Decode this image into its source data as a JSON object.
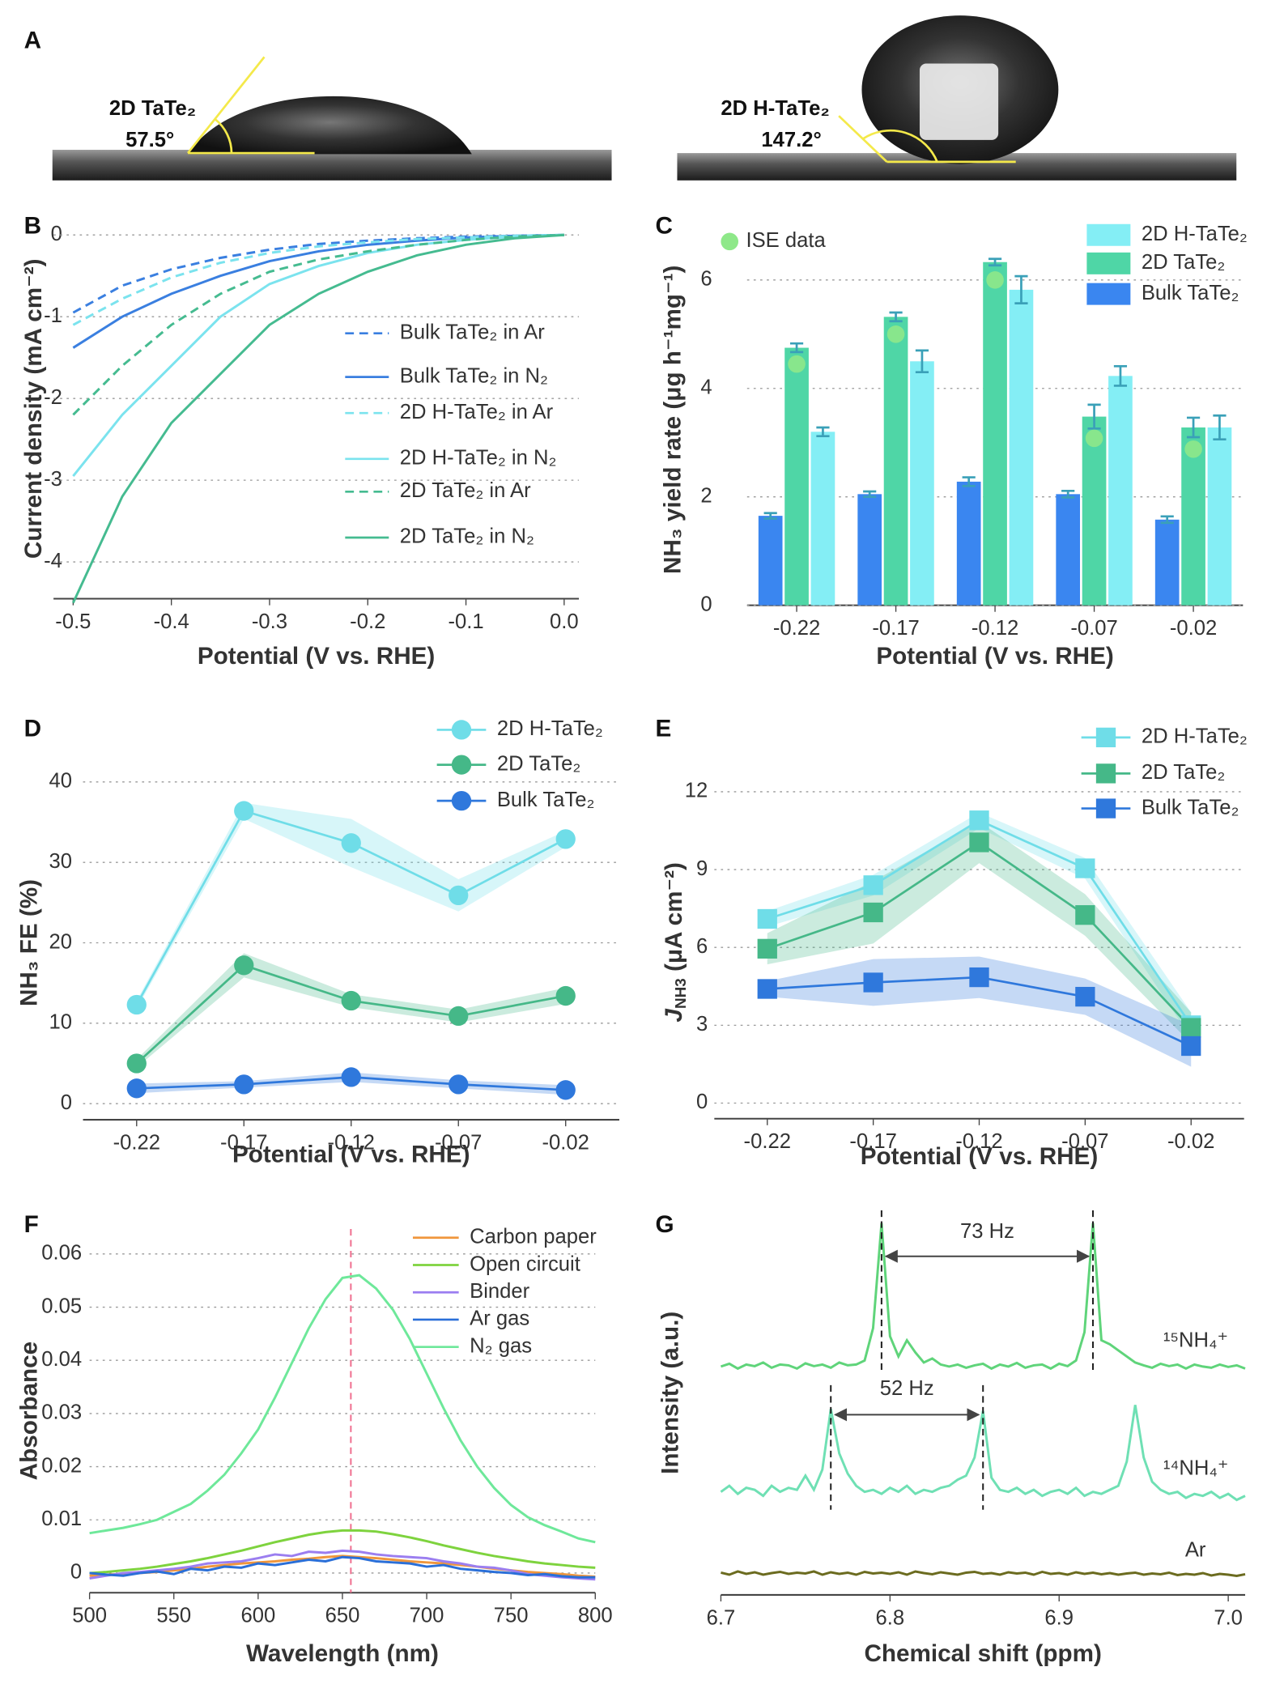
{
  "panel_labels": [
    "A",
    "B",
    "C",
    "D",
    "E",
    "F",
    "G"
  ],
  "panel_a": {
    "left": {
      "label": "2D TaTe₂",
      "angle": "57.5°"
    },
    "right": {
      "label": "2D H-TaTe₂",
      "angle": "147.2°"
    }
  },
  "chart_data": [
    {
      "type": "line",
      "xlabel": "Potential (V vs. RHE)",
      "ylabel": "Current density (mA cm⁻²)",
      "x": [
        -0.5,
        -0.45,
        -0.4,
        -0.35,
        -0.3,
        -0.25,
        -0.2,
        -0.15,
        -0.1,
        -0.05,
        0
      ],
      "xlim": [
        -0.52,
        0.015
      ],
      "ylim": [
        -4.45,
        0.2
      ],
      "xticks": [
        -0.5,
        -0.4,
        -0.3,
        -0.2,
        -0.1,
        {
          "value": 0,
          "label": "0.0"
        }
      ],
      "yticks": [
        0,
        -1,
        -2,
        -3,
        -4
      ],
      "grid": true,
      "legend": "right",
      "series": [
        {
          "name": "Bulk TaTe₂ in Ar",
          "color": "#3a7fe0",
          "dash": true,
          "values": [
            -0.95,
            -0.62,
            -0.42,
            -0.28,
            -0.18,
            -0.11,
            -0.07,
            -0.04,
            -0.02,
            -0.01,
            0
          ]
        },
        {
          "name": "Bulk TaTe₂ in N₂",
          "color": "#3a7fe0",
          "dash": false,
          "values": [
            -1.38,
            -1.0,
            -0.72,
            -0.5,
            -0.32,
            -0.2,
            -0.12,
            -0.07,
            -0.03,
            -0.01,
            0
          ]
        },
        {
          "name": "2D H-TaTe₂ in Ar",
          "color": "#7be3ee",
          "dash": true,
          "values": [
            -1.1,
            -0.78,
            -0.52,
            -0.34,
            -0.22,
            -0.14,
            -0.09,
            -0.05,
            -0.03,
            -0.01,
            0
          ]
        },
        {
          "name": "2D H-TaTe₂ in N₂",
          "color": "#7be3ee",
          "dash": false,
          "values": [
            -2.95,
            -2.2,
            -1.6,
            -1.0,
            -0.6,
            -0.38,
            -0.22,
            -0.12,
            -0.06,
            -0.02,
            0
          ]
        },
        {
          "name": "2D TaTe₂ in Ar",
          "color": "#45bb90",
          "dash": true,
          "values": [
            -2.2,
            -1.6,
            -1.1,
            -0.72,
            -0.45,
            -0.3,
            -0.2,
            -0.12,
            -0.06,
            -0.02,
            0
          ]
        },
        {
          "name": "2D TaTe₂ in N₂",
          "color": "#45bb90",
          "dash": false,
          "values": [
            -4.5,
            -3.2,
            -2.3,
            -1.7,
            -1.1,
            -0.72,
            -0.45,
            -0.25,
            -0.12,
            -0.04,
            0
          ]
        }
      ]
    },
    {
      "type": "bar",
      "xlabel": "Potential (V vs. RHE)",
      "ylabel": "NH₃ yield rate (μg h⁻¹mg⁻¹)",
      "categories": [
        "-0.22",
        "-0.17",
        "-0.12",
        "-0.07",
        "-0.02"
      ],
      "ylim": [
        0,
        6.85
      ],
      "yticks": [
        0,
        2,
        4,
        6
      ],
      "grid": true,
      "legend": "upper right",
      "error_color": "#3aa0b8",
      "series": [
        {
          "name": "Bulk TaTe₂",
          "color": "#3a86f0",
          "values": [
            1.65,
            2.05,
            2.28,
            2.05,
            1.58
          ],
          "errors": [
            0.05,
            0.05,
            0.08,
            0.06,
            0.06
          ]
        },
        {
          "name": "2D TaTe₂",
          "color": "#4fd6a6",
          "values": [
            4.75,
            5.32,
            6.33,
            3.48,
            3.28
          ],
          "errors": [
            0.08,
            0.08,
            0.06,
            0.22,
            0.18
          ]
        },
        {
          "name": "2D H-TaTe₂",
          "color": "#84eef5",
          "values": [
            3.2,
            4.5,
            5.82,
            4.23,
            3.28
          ],
          "errors": [
            0.08,
            0.2,
            0.25,
            0.18,
            0.22
          ]
        }
      ],
      "points": {
        "name": "ISE data",
        "color": "#8ee889",
        "values": [
          4.45,
          5.0,
          6.0,
          3.08,
          2.88
        ]
      }
    },
    {
      "type": "line",
      "xlabel": "Potential (V vs. RHE)",
      "ylabel": "NH₃ FE (%)",
      "categories": [
        "-0.22",
        "-0.17",
        "-0.12",
        "-0.07",
        "-0.02"
      ],
      "ylim": [
        -2,
        42
      ],
      "yticks": [
        0,
        10,
        20,
        30,
        40
      ],
      "grid": true,
      "legend": "upper right",
      "marker": "circle",
      "series": [
        {
          "name": "2D H-TaTe₂",
          "color": "#6fdde8",
          "values": [
            12.3,
            36.4,
            32.4,
            25.9,
            32.9
          ],
          "errors": [
            0.5,
            1,
            3,
            2,
            1
          ]
        },
        {
          "name": "2D TaTe₂",
          "color": "#45b888",
          "values": [
            5.0,
            17.2,
            12.8,
            10.9,
            13.4
          ],
          "errors": [
            0.5,
            1.5,
            0.8,
            0.8,
            1
          ]
        },
        {
          "name": "Bulk TaTe₂",
          "color": "#2f78dc",
          "values": [
            1.9,
            2.4,
            3.3,
            2.4,
            1.7
          ],
          "errors": [
            0.6,
            0.4,
            0.6,
            0.5,
            0.6
          ]
        }
      ]
    },
    {
      "type": "line",
      "xlabel": "Potential (V vs. RHE)",
      "ylabel": {
        "symbol": "J",
        "subscript": "NH3",
        "unit": " (μA cm⁻²)"
      },
      "categories": [
        "-0.22",
        "-0.17",
        "-0.12",
        "-0.07",
        "-0.02"
      ],
      "ylim": [
        -0.6,
        13
      ],
      "yticks": [
        0,
        3,
        6,
        9,
        12
      ],
      "grid": true,
      "legend": "upper right",
      "marker": "square",
      "series": [
        {
          "name": "2D H-TaTe₂",
          "color": "#6fdde8",
          "values": [
            7.1,
            8.4,
            10.9,
            9.05,
            3.0
          ],
          "errors": [
            0.3,
            0.4,
            0.3,
            0.4,
            0.5
          ]
        },
        {
          "name": "2D TaTe₂",
          "color": "#45b888",
          "values": [
            5.95,
            7.35,
            10.05,
            7.25,
            2.9
          ],
          "errors": [
            0.6,
            1.2,
            0.8,
            0.8,
            0.6
          ]
        },
        {
          "name": "Bulk TaTe₂",
          "color": "#2f78dc",
          "values": [
            4.4,
            4.65,
            4.85,
            4.1,
            2.2
          ],
          "errors": [
            0.3,
            0.9,
            0.8,
            0.7,
            0.8
          ]
        }
      ]
    },
    {
      "type": "line",
      "xlabel": "Wavelength (nm)",
      "ylabel": "Absorbance",
      "x": [
        500,
        510,
        520,
        530,
        540,
        550,
        560,
        570,
        580,
        590,
        600,
        610,
        620,
        630,
        640,
        650,
        660,
        670,
        680,
        690,
        700,
        710,
        720,
        730,
        740,
        750,
        760,
        770,
        780,
        790,
        800
      ],
      "xlim": [
        500,
        800
      ],
      "ylim": [
        -0.0037,
        0.0647
      ],
      "xticks": [
        500,
        550,
        600,
        650,
        700,
        750,
        800
      ],
      "yticks": [
        0,
        0.01,
        0.02,
        0.03,
        0.04,
        0.05,
        0.06
      ],
      "grid": true,
      "legend": "upper right",
      "vline": {
        "x": 655,
        "color": "#f07090"
      },
      "series": [
        {
          "name": "Carbon paper",
          "color": "#f0963c",
          "values": [
            -0.0005,
            -0.0003,
            -0.0002,
            0,
            0.0002,
            0.0005,
            0.0008,
            0.0012,
            0.0015,
            0.0018,
            0.002,
            0.0022,
            0.0025,
            0.0027,
            0.003,
            0.0032,
            0.003,
            0.0028,
            0.0025,
            0.0022,
            0.002,
            0.0018,
            0.0015,
            0.0012,
            0.0008,
            0.0005,
            0.0002,
            0,
            -0.0002,
            -0.0005,
            -0.0007
          ]
        },
        {
          "name": "Open circuit",
          "color": "#7ed33e",
          "values": [
            0,
            0.0002,
            0.0005,
            0.0008,
            0.0012,
            0.0017,
            0.0022,
            0.0028,
            0.0035,
            0.0042,
            0.005,
            0.0058,
            0.0065,
            0.0072,
            0.0077,
            0.008,
            0.008,
            0.0078,
            0.0073,
            0.0067,
            0.006,
            0.0052,
            0.0045,
            0.0038,
            0.0032,
            0.0027,
            0.0022,
            0.0018,
            0.0015,
            0.0012,
            0.001
          ]
        },
        {
          "name": "Binder",
          "color": "#9b7ef0",
          "values": [
            -0.001,
            -0.0005,
            0,
            0.0002,
            0.0005,
            0.0008,
            0.0012,
            0.0018,
            0.002,
            0.0022,
            0.0028,
            0.0035,
            0.0032,
            0.004,
            0.0038,
            0.0042,
            0.004,
            0.0035,
            0.0032,
            0.003,
            0.0028,
            0.0022,
            0.0018,
            0.0012,
            0.001,
            0.0005,
            -0.0002,
            -0.0005,
            -0.0008,
            -0.001,
            -0.0012
          ]
        },
        {
          "name": "Ar gas",
          "color": "#2a6fd8",
          "values": [
            0,
            -0.0003,
            -0.0005,
            0,
            0.0003,
            -0.0002,
            0.0008,
            0.0005,
            0.0012,
            0.001,
            0.0018,
            0.0015,
            0.002,
            0.0025,
            0.0022,
            0.003,
            0.0028,
            0.0022,
            0.002,
            0.0018,
            0.0012,
            0.0015,
            0.0008,
            0.0005,
            0.0002,
            0,
            -0.0004,
            -0.0002,
            -0.0006,
            -0.0008,
            -0.0008
          ]
        },
        {
          "name": "N₂ gas",
          "color": "#6ee89a",
          "values": [
            0.0075,
            0.008,
            0.0085,
            0.0092,
            0.01,
            0.0115,
            0.013,
            0.0155,
            0.0185,
            0.0225,
            0.027,
            0.033,
            0.0395,
            0.046,
            0.0515,
            0.0555,
            0.056,
            0.0535,
            0.0495,
            0.044,
            0.0375,
            0.031,
            0.025,
            0.02,
            0.016,
            0.0128,
            0.0105,
            0.009,
            0.0078,
            0.0065,
            0.0058
          ]
        }
      ]
    },
    {
      "type": "line",
      "xlabel": "Chemical shift (ppm)",
      "ylabel": "Intensity (a.u.)",
      "x": [
        6.7,
        6.705,
        6.71,
        6.715,
        6.72,
        6.725,
        6.73,
        6.735,
        6.74,
        6.745,
        6.75,
        6.755,
        6.76,
        6.765,
        6.77,
        6.775,
        6.78,
        6.785,
        6.79,
        6.795,
        6.8,
        6.805,
        6.81,
        6.815,
        6.82,
        6.825,
        6.83,
        6.835,
        6.84,
        6.845,
        6.85,
        6.855,
        6.86,
        6.865,
        6.87,
        6.875,
        6.88,
        6.885,
        6.89,
        6.895,
        6.9,
        6.905,
        6.91,
        6.915,
        6.92,
        6.925,
        6.93,
        6.935,
        6.94,
        6.945,
        6.95,
        6.955,
        6.96,
        6.965,
        6.97,
        6.975,
        6.98,
        6.985,
        6.99,
        6.995,
        7,
        7.005,
        7.01
      ],
      "xlim": [
        6.7,
        7.01
      ],
      "ylim": [
        0,
        10
      ],
      "xticks": [
        6.7,
        6.8,
        6.9,
        {
          "value": 7,
          "label": "7.0"
        }
      ],
      "grid": false,
      "legend": "inline",
      "annotations": [
        {
          "text": "73 Hz",
          "x1": 6.795,
          "x2": 6.92
        },
        {
          "text": "52 Hz",
          "x1": 6.765,
          "x2": 6.855
        }
      ],
      "series": [
        {
          "name": "¹⁵NH₄⁺",
          "color": "#5fd47a",
          "values": [
            5.65,
            5.72,
            5.6,
            5.7,
            5.66,
            5.75,
            5.62,
            5.7,
            5.68,
            5.6,
            5.73,
            5.66,
            5.7,
            5.62,
            5.75,
            5.68,
            5.7,
            5.8,
            6.6,
            9.2,
            6.4,
            5.9,
            6.3,
            6.0,
            5.75,
            5.85,
            5.7,
            5.65,
            5.7,
            5.62,
            5.68,
            5.72,
            5.6,
            5.7,
            5.65,
            5.74,
            5.62,
            5.68,
            5.7,
            5.6,
            5.72,
            5.66,
            5.8,
            6.5,
            9.2,
            6.3,
            6.2,
            6.05,
            5.9,
            5.75,
            5.68,
            5.62,
            5.72,
            5.66,
            5.7,
            5.6,
            5.7,
            5.65,
            5.62,
            5.7,
            5.64,
            5.68,
            5.6
          ]
        },
        {
          "name": "¹⁴NH₄⁺",
          "color": "#6fe0b4",
          "values": [
            2.55,
            2.7,
            2.5,
            2.65,
            2.6,
            2.45,
            2.7,
            2.55,
            2.65,
            2.6,
            2.95,
            2.6,
            3.1,
            4.6,
            3.5,
            3.0,
            2.7,
            2.55,
            2.6,
            2.5,
            2.65,
            2.55,
            2.7,
            2.5,
            2.6,
            2.55,
            2.65,
            2.7,
            2.85,
            2.95,
            3.4,
            4.55,
            2.9,
            2.6,
            2.55,
            2.65,
            2.5,
            2.6,
            2.45,
            2.55,
            2.6,
            2.5,
            2.65,
            2.45,
            2.55,
            2.5,
            2.6,
            2.7,
            3.3,
            4.7,
            3.4,
            2.8,
            2.6,
            2.5,
            2.55,
            2.4,
            2.5,
            2.45,
            2.55,
            2.4,
            2.5,
            2.35,
            2.45
          ]
        },
        {
          "name": "Ar",
          "color": "#6b6b1f",
          "values": [
            0.55,
            0.5,
            0.58,
            0.52,
            0.56,
            0.5,
            0.54,
            0.57,
            0.52,
            0.55,
            0.53,
            0.58,
            0.5,
            0.56,
            0.52,
            0.55,
            0.5,
            0.57,
            0.53,
            0.55,
            0.52,
            0.56,
            0.5,
            0.58,
            0.54,
            0.51,
            0.56,
            0.53,
            0.5,
            0.55,
            0.57,
            0.52,
            0.54,
            0.5,
            0.56,
            0.53,
            0.55,
            0.5,
            0.57,
            0.52,
            0.54,
            0.5,
            0.56,
            0.52,
            0.55,
            0.51,
            0.54,
            0.5,
            0.53,
            0.55,
            0.5,
            0.53,
            0.51,
            0.55,
            0.49,
            0.52,
            0.5,
            0.54,
            0.48,
            0.52,
            0.5,
            0.47,
            0.51
          ]
        }
      ]
    }
  ]
}
